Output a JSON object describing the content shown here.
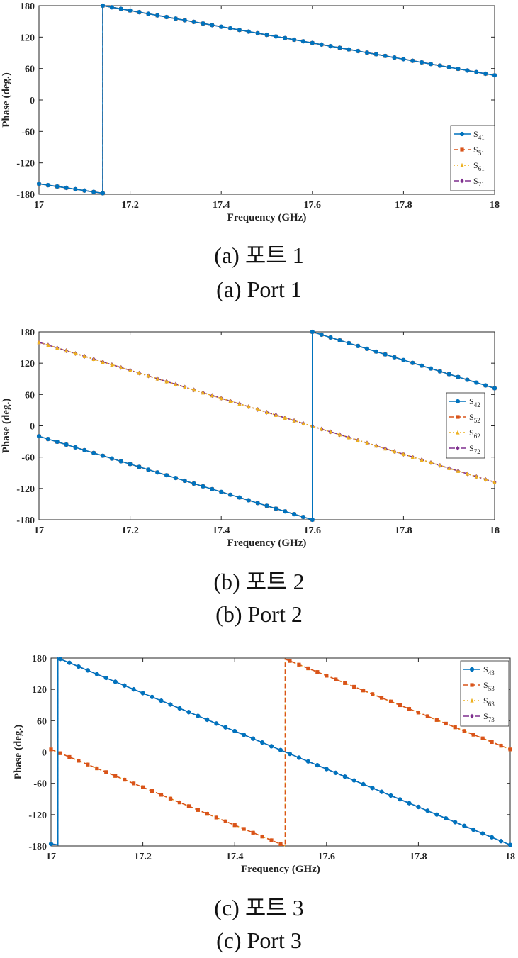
{
  "colors": {
    "s4": "#0072BD",
    "s5": "#D95319",
    "s6": "#EDB120",
    "s7": "#7E2F8E"
  },
  "chart_data": [
    {
      "type": "line",
      "xlabel": "Frequency (GHz)",
      "ylabel": "Phase (deg.)",
      "xlim": [
        17,
        18
      ],
      "ylim": [
        -180,
        180
      ],
      "xticks": [
        "17",
        "17.2",
        "17.4",
        "17.6",
        "17.8",
        "18"
      ],
      "yticks": [
        "-180",
        "-120",
        "-60",
        "0",
        "60",
        "120",
        "180"
      ],
      "legend_position": "bottom-right",
      "captions": [
        "(a) 포트 1",
        "(a) Port 1"
      ],
      "series": [
        {
          "name": "S41",
          "label_main": "S",
          "label_sub": "41",
          "marker": "circle",
          "dash": "solid",
          "color": "#0072BD",
          "points": [
            [
              17,
              -160
            ],
            [
              17.14,
              -178
            ],
            [
              17.14,
              180
            ],
            [
              18,
              47
            ]
          ]
        },
        {
          "name": "S51",
          "label_main": "S",
          "label_sub": "51",
          "marker": "square",
          "dash": "dashed",
          "color": "#D95319",
          "points": [
            [
              17,
              -160
            ],
            [
              17.14,
              -178
            ],
            [
              17.14,
              180
            ],
            [
              18,
              47
            ]
          ]
        },
        {
          "name": "S61",
          "label_main": "S",
          "label_sub": "61",
          "marker": "triangle",
          "dash": "dotted",
          "color": "#EDB120",
          "points": [
            [
              17,
              -160
            ],
            [
              17.14,
              -178
            ],
            [
              17.14,
              180
            ],
            [
              18,
              47
            ]
          ]
        },
        {
          "name": "S71",
          "label_main": "S",
          "label_sub": "71",
          "marker": "diamond",
          "dash": "dashdot",
          "color": "#7E2F8E",
          "points": [
            [
              17,
              -160
            ],
            [
              17.14,
              -178
            ],
            [
              17.14,
              180
            ],
            [
              18,
              47
            ]
          ]
        }
      ]
    },
    {
      "type": "line",
      "xlabel": "Frequency (GHz)",
      "ylabel": "Phase (deg.)",
      "xlim": [
        17,
        18
      ],
      "ylim": [
        -180,
        180
      ],
      "xticks": [
        "17",
        "17.2",
        "17.4",
        "17.6",
        "17.8",
        "18"
      ],
      "yticks": [
        "-180",
        "-120",
        "-60",
        "0",
        "60",
        "120",
        "180"
      ],
      "legend_position": "right",
      "captions": [
        "(b) 포트 2",
        "(b) Port 2"
      ],
      "series": [
        {
          "name": "S42",
          "label_main": "S",
          "label_sub": "42",
          "marker": "circle",
          "dash": "solid",
          "color": "#0072BD",
          "points": [
            [
              17,
              -20
            ],
            [
              17.6,
              -180
            ],
            [
              17.6,
              180
            ],
            [
              18,
              72
            ]
          ]
        },
        {
          "name": "S52",
          "label_main": "S",
          "label_sub": "52",
          "marker": "square",
          "dash": "dashed",
          "color": "#D95319",
          "points": [
            [
              17,
              -20
            ],
            [
              17.6,
              -180
            ],
            [
              17.6,
              180
            ],
            [
              18,
              72
            ]
          ]
        },
        {
          "name": "S62",
          "label_main": "S",
          "label_sub": "62",
          "marker": "triangle",
          "dash": "dotted",
          "color": "#EDB120",
          "points": [
            [
              17,
              160
            ],
            [
              18,
              -108
            ]
          ]
        },
        {
          "name": "S72",
          "label_main": "S",
          "label_sub": "72",
          "marker": "diamond",
          "dash": "dashdot",
          "color": "#7E2F8E",
          "points": [
            [
              17,
              160
            ],
            [
              18,
              -108
            ]
          ]
        }
      ]
    },
    {
      "type": "line",
      "xlabel": "Frequency (GHz)",
      "ylabel": "Phase (deg.)",
      "xlim": [
        17,
        18
      ],
      "ylim": [
        -180,
        180
      ],
      "xticks": [
        "17",
        "17.2",
        "17.4",
        "17.6",
        "17.8",
        "18"
      ],
      "yticks": [
        "-180",
        "-120",
        "-60",
        "0",
        "60",
        "120",
        "180"
      ],
      "legend_position": "top-right",
      "captions": [
        "(c) 포트 3",
        "(c) Port 3"
      ],
      "series": [
        {
          "name": "S43",
          "label_main": "S",
          "label_sub": "43",
          "marker": "circle",
          "dash": "solid",
          "color": "#0072BD",
          "points": [
            [
              17,
              -176
            ],
            [
              17.015,
              -178
            ],
            [
              17.015,
              180
            ],
            [
              18,
              -178
            ]
          ]
        },
        {
          "name": "S53",
          "label_main": "S",
          "label_sub": "53",
          "marker": "square",
          "dash": "dashed",
          "color": "#D95319",
          "points": [
            [
              17,
              5
            ],
            [
              17.51,
              -180
            ],
            [
              17.51,
              178
            ],
            [
              18,
              5
            ]
          ]
        },
        {
          "name": "S63",
          "label_main": "S",
          "label_sub": "63",
          "marker": "triangle",
          "dash": "dotted",
          "color": "#EDB120",
          "points": [
            [
              17,
              5
            ],
            [
              17.51,
              -180
            ],
            [
              17.51,
              178
            ],
            [
              18,
              5
            ]
          ]
        },
        {
          "name": "S73",
          "label_main": "S",
          "label_sub": "73",
          "marker": "diamond",
          "dash": "dashdot",
          "color": "#7E2F8E",
          "points": [
            [
              17,
              -176
            ],
            [
              17.015,
              -178
            ],
            [
              17.015,
              180
            ],
            [
              18,
              -178
            ]
          ]
        }
      ]
    }
  ]
}
